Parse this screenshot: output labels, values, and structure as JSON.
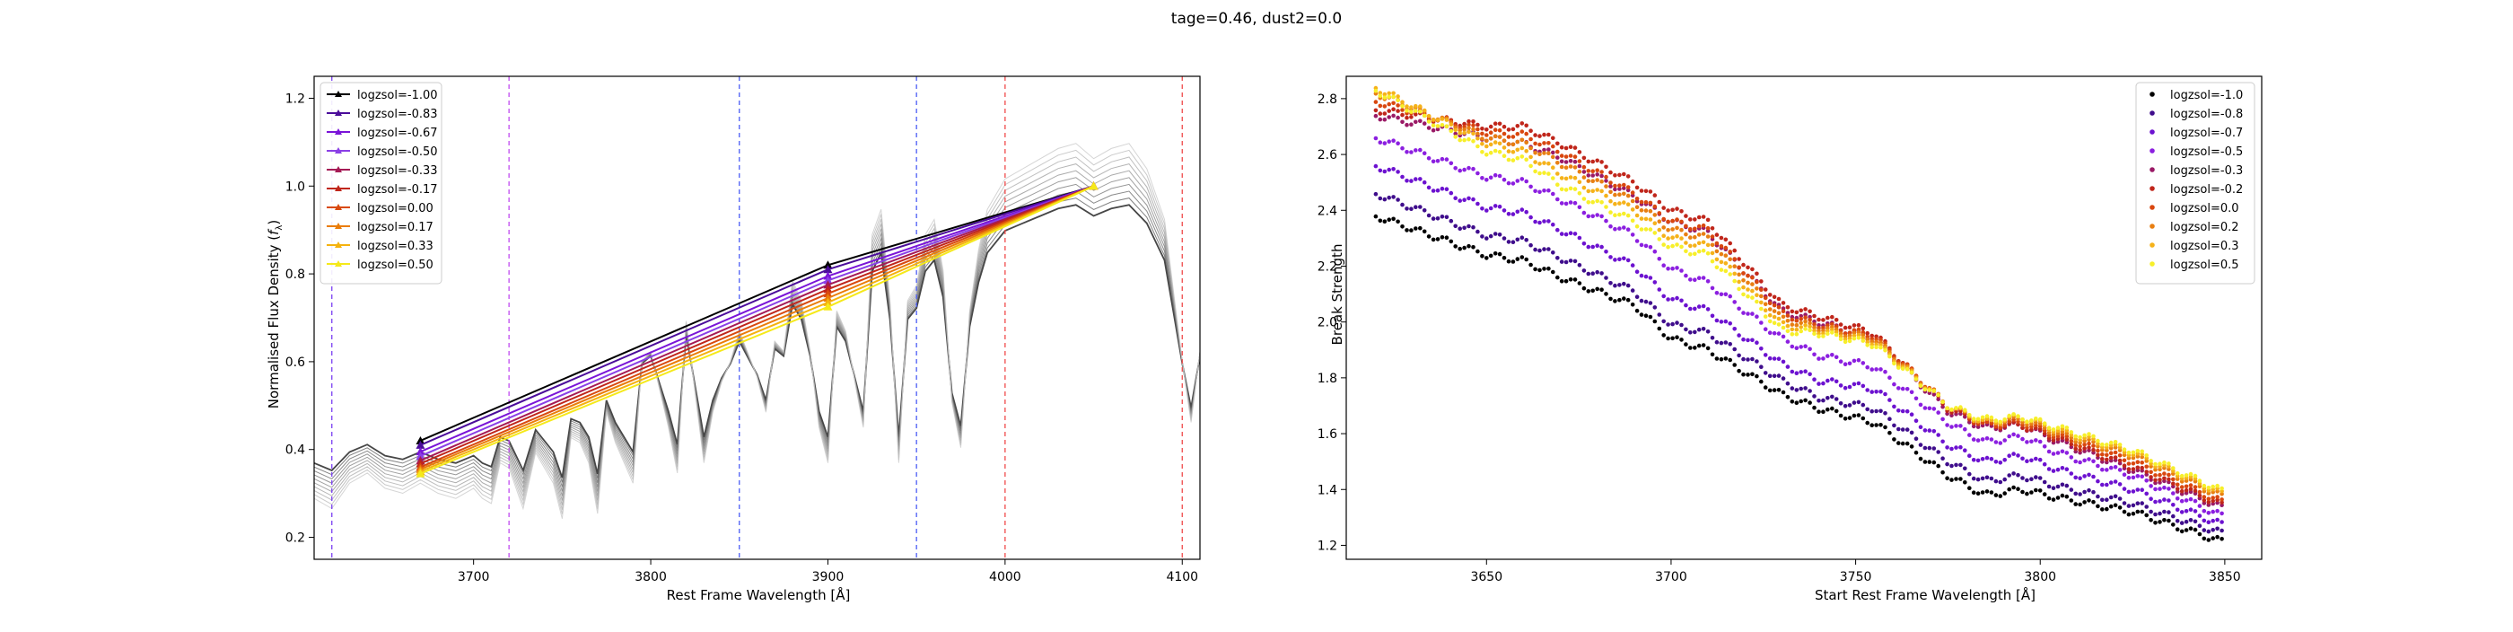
{
  "figure": {
    "suptitle": "tage=0.46, dust2=0.0"
  },
  "chart_data": [
    {
      "type": "line",
      "xlabel": "Rest Frame Wavelength [Å]",
      "ylabel": "Normalised Flux Density (f_λ)",
      "xlim": [
        3610,
        4110
      ],
      "ylim": [
        0.15,
        1.25
      ],
      "xticks": [
        3700,
        3800,
        3900,
        4000,
        4100
      ],
      "yticks": [
        0.2,
        0.4,
        0.6,
        0.8,
        1.0,
        1.2
      ],
      "legend_position": "top-left",
      "vlines": [
        {
          "x": 3620,
          "color": "#7a3ff2"
        },
        {
          "x": 3720,
          "color": "#c04bf0"
        },
        {
          "x": 3850,
          "color": "#4a5cf5"
        },
        {
          "x": 3950,
          "color": "#4a5cf5"
        },
        {
          "x": 4000,
          "color": "#f04a4a"
        },
        {
          "x": 4100,
          "color": "#f04a4a"
        }
      ],
      "spectra_base": {
        "x": [
          3610,
          3620,
          3630,
          3640,
          3650,
          3660,
          3670,
          3680,
          3690,
          3700,
          3705,
          3710,
          3715,
          3720,
          3728,
          3735,
          3745,
          3750,
          3755,
          3760,
          3765,
          3770,
          3775,
          3780,
          3790,
          3795,
          3800,
          3810,
          3815,
          3820,
          3830,
          3835,
          3840,
          3845,
          3850,
          3860,
          3865,
          3870,
          3875,
          3880,
          3885,
          3890,
          3895,
          3900,
          3905,
          3910,
          3920,
          3925,
          3930,
          3935,
          3940,
          3945,
          3950,
          3955,
          3960,
          3965,
          3970,
          3975,
          3980,
          3985,
          3990,
          4000,
          4010,
          4020,
          4030,
          4040,
          4050,
          4060,
          4070,
          4080,
          4090,
          4100,
          4105,
          4110
        ],
        "y": [
          0.33,
          0.31,
          0.36,
          0.38,
          0.35,
          0.34,
          0.36,
          0.34,
          0.33,
          0.35,
          0.33,
          0.32,
          0.4,
          0.39,
          0.31,
          0.42,
          0.36,
          0.29,
          0.45,
          0.44,
          0.4,
          0.3,
          0.5,
          0.44,
          0.36,
          0.6,
          0.62,
          0.47,
          0.38,
          0.68,
          0.4,
          0.5,
          0.56,
          0.6,
          0.66,
          0.57,
          0.5,
          0.64,
          0.62,
          0.76,
          0.72,
          0.62,
          0.47,
          0.4,
          0.7,
          0.66,
          0.47,
          0.85,
          0.9,
          0.72,
          0.4,
          0.72,
          0.75,
          0.85,
          0.88,
          0.78,
          0.52,
          0.43,
          0.7,
          0.82,
          0.9,
          0.96,
          0.98,
          1.0,
          1.02,
          1.03,
          1.0,
          1.02,
          1.03,
          0.98,
          0.88,
          0.6,
          0.48,
          0.62
        ]
      },
      "series": [
        {
          "name": "logzsol=-1.00",
          "color": "#000000",
          "points": [
            [
              3670,
              0.42
            ],
            [
              3900,
              0.82
            ],
            [
              4050,
              1.0
            ]
          ]
        },
        {
          "name": "logzsol=-0.83",
          "color": "#4b0d9a",
          "points": [
            [
              3670,
              0.41
            ],
            [
              3900,
              0.81
            ],
            [
              4050,
              1.0
            ]
          ]
        },
        {
          "name": "logzsol=-0.67",
          "color": "#7a14d8",
          "points": [
            [
              3670,
              0.395
            ],
            [
              3900,
              0.795
            ],
            [
              4050,
              1.0
            ]
          ]
        },
        {
          "name": "logzsol=-0.50",
          "color": "#8a3fe6",
          "points": [
            [
              3670,
              0.385
            ],
            [
              3900,
              0.785
            ],
            [
              4050,
              1.0
            ]
          ]
        },
        {
          "name": "logzsol=-0.33",
          "color": "#a51a55",
          "points": [
            [
              3670,
              0.375
            ],
            [
              3900,
              0.775
            ],
            [
              4050,
              1.0
            ]
          ]
        },
        {
          "name": "logzsol=-0.17",
          "color": "#c0261b",
          "points": [
            [
              3670,
              0.368
            ],
            [
              3900,
              0.765
            ],
            [
              4050,
              1.0
            ]
          ]
        },
        {
          "name": "logzsol=0.00",
          "color": "#d94a0f",
          "points": [
            [
              3670,
              0.36
            ],
            [
              3900,
              0.755
            ],
            [
              4050,
              1.0
            ]
          ]
        },
        {
          "name": "logzsol=0.17",
          "color": "#ea7d0a",
          "points": [
            [
              3670,
              0.355
            ],
            [
              3900,
              0.745
            ],
            [
              4050,
              1.0
            ]
          ]
        },
        {
          "name": "logzsol=0.33",
          "color": "#f5b20f",
          "points": [
            [
              3670,
              0.35
            ],
            [
              3900,
              0.735
            ],
            [
              4050,
              1.0
            ]
          ]
        },
        {
          "name": "logzsol=0.50",
          "color": "#f5e91a",
          "points": [
            [
              3670,
              0.345
            ],
            [
              3900,
              0.725
            ],
            [
              4050,
              1.0
            ]
          ]
        }
      ]
    },
    {
      "type": "scatter",
      "xlabel": "Start Rest Frame Wavelength [Å]",
      "ylabel": "Break Strength",
      "xlim": [
        3612,
        3860
      ],
      "ylim": [
        1.15,
        2.88
      ],
      "xticks": [
        3650,
        3700,
        3750,
        3800,
        3850
      ],
      "yticks": [
        1.2,
        1.4,
        1.6,
        1.8,
        2.0,
        2.2,
        2.4,
        2.6,
        2.8
      ],
      "legend_position": "top-right",
      "x_range": [
        3620,
        3850
      ],
      "series": [
        {
          "name": "logzsol=-1.0",
          "color": "#000000",
          "anchors": [
            [
              3620,
              2.38
            ],
            [
              3650,
              2.24
            ],
            [
              3660,
              2.22
            ],
            [
              3670,
              2.16
            ],
            [
              3690,
              2.06
            ],
            [
              3700,
              1.94
            ],
            [
              3710,
              1.9
            ],
            [
              3730,
              1.74
            ],
            [
              3740,
              1.69
            ],
            [
              3755,
              1.64
            ],
            [
              3775,
              1.45
            ],
            [
              3785,
              1.38
            ],
            [
              3795,
              1.4
            ],
            [
              3805,
              1.37
            ],
            [
              3825,
              1.32
            ],
            [
              3850,
              1.21
            ]
          ]
        },
        {
          "name": "logzsol=-0.8",
          "color": "#3f0d8c",
          "anchors": [
            [
              3620,
              2.46
            ],
            [
              3650,
              2.31
            ],
            [
              3660,
              2.29
            ],
            [
              3670,
              2.23
            ],
            [
              3690,
              2.11
            ],
            [
              3700,
              1.99
            ],
            [
              3710,
              1.96
            ],
            [
              3730,
              1.79
            ],
            [
              3740,
              1.73
            ],
            [
              3755,
              1.69
            ],
            [
              3775,
              1.5
            ],
            [
              3785,
              1.43
            ],
            [
              3795,
              1.45
            ],
            [
              3805,
              1.41
            ],
            [
              3825,
              1.35
            ],
            [
              3850,
              1.24
            ]
          ]
        },
        {
          "name": "logzsol=-0.7",
          "color": "#6c12d0",
          "anchors": [
            [
              3620,
              2.56
            ],
            [
              3650,
              2.41
            ],
            [
              3660,
              2.39
            ],
            [
              3670,
              2.33
            ],
            [
              3690,
              2.2
            ],
            [
              3700,
              2.08
            ],
            [
              3710,
              2.04
            ],
            [
              3730,
              1.85
            ],
            [
              3740,
              1.79
            ],
            [
              3755,
              1.76
            ],
            [
              3775,
              1.56
            ],
            [
              3785,
              1.5
            ],
            [
              3795,
              1.52
            ],
            [
              3805,
              1.47
            ],
            [
              3825,
              1.4
            ],
            [
              3850,
              1.27
            ]
          ]
        },
        {
          "name": "logzsol=-0.5",
          "color": "#8b1fe0",
          "anchors": [
            [
              3620,
              2.66
            ],
            [
              3650,
              2.52
            ],
            [
              3660,
              2.5
            ],
            [
              3670,
              2.44
            ],
            [
              3690,
              2.31
            ],
            [
              3700,
              2.19
            ],
            [
              3710,
              2.14
            ],
            [
              3730,
              1.94
            ],
            [
              3740,
              1.88
            ],
            [
              3755,
              1.84
            ],
            [
              3775,
              1.64
            ],
            [
              3785,
              1.57
            ],
            [
              3795,
              1.59
            ],
            [
              3805,
              1.53
            ],
            [
              3825,
              1.45
            ],
            [
              3850,
              1.3
            ]
          ]
        },
        {
          "name": "logzsol=-0.3",
          "color": "#9a1a66",
          "anchors": [
            [
              3620,
              2.74
            ],
            [
              3650,
              2.66
            ],
            [
              3660,
              2.64
            ],
            [
              3670,
              2.59
            ],
            [
              3690,
              2.45
            ],
            [
              3700,
              2.36
            ],
            [
              3710,
              2.32
            ],
            [
              3730,
              2.04
            ],
            [
              3740,
              2.0
            ],
            [
              3755,
              1.94
            ],
            [
              3775,
              1.68
            ],
            [
              3785,
              1.62
            ],
            [
              3795,
              1.63
            ],
            [
              3805,
              1.57
            ],
            [
              3825,
              1.47
            ],
            [
              3850,
              1.33
            ]
          ]
        },
        {
          "name": "logzsol=-0.2",
          "color": "#c0261b",
          "anchors": [
            [
              3620,
              2.76
            ],
            [
              3650,
              2.7
            ],
            [
              3660,
              2.7
            ],
            [
              3670,
              2.64
            ],
            [
              3690,
              2.5
            ],
            [
              3700,
              2.4
            ],
            [
              3710,
              2.36
            ],
            [
              3730,
              2.06
            ],
            [
              3740,
              2.02
            ],
            [
              3755,
              1.96
            ],
            [
              3775,
              1.69
            ],
            [
              3785,
              1.63
            ],
            [
              3795,
              1.63
            ],
            [
              3805,
              1.58
            ],
            [
              3825,
              1.48
            ],
            [
              3850,
              1.34
            ]
          ]
        },
        {
          "name": "logzsol=0.0",
          "color": "#d9470f",
          "anchors": [
            [
              3620,
              2.79
            ],
            [
              3650,
              2.68
            ],
            [
              3660,
              2.67
            ],
            [
              3670,
              2.61
            ],
            [
              3690,
              2.46
            ],
            [
              3700,
              2.36
            ],
            [
              3710,
              2.33
            ],
            [
              3730,
              2.03
            ],
            [
              3740,
              1.99
            ],
            [
              3755,
              1.95
            ],
            [
              3775,
              1.7
            ],
            [
              3785,
              1.63
            ],
            [
              3795,
              1.64
            ],
            [
              3805,
              1.59
            ],
            [
              3825,
              1.5
            ],
            [
              3850,
              1.35
            ]
          ]
        },
        {
          "name": "logzsol=0.2",
          "color": "#e87f12",
          "anchors": [
            [
              3620,
              2.82
            ],
            [
              3650,
              2.66
            ],
            [
              3660,
              2.64
            ],
            [
              3670,
              2.57
            ],
            [
              3690,
              2.43
            ],
            [
              3700,
              2.33
            ],
            [
              3710,
              2.3
            ],
            [
              3730,
              2.01
            ],
            [
              3740,
              1.98
            ],
            [
              3755,
              1.94
            ],
            [
              3775,
              1.7
            ],
            [
              3785,
              1.64
            ],
            [
              3795,
              1.65
            ],
            [
              3805,
              1.6
            ],
            [
              3825,
              1.52
            ],
            [
              3850,
              1.37
            ]
          ]
        },
        {
          "name": "logzsol=0.3",
          "color": "#f5b21a",
          "anchors": [
            [
              3620,
              2.84
            ],
            [
              3650,
              2.64
            ],
            [
              3660,
              2.61
            ],
            [
              3670,
              2.53
            ],
            [
              3690,
              2.4
            ],
            [
              3700,
              2.3
            ],
            [
              3710,
              2.27
            ],
            [
              3730,
              1.99
            ],
            [
              3740,
              1.97
            ],
            [
              3755,
              1.93
            ],
            [
              3775,
              1.7
            ],
            [
              3785,
              1.64
            ],
            [
              3795,
              1.66
            ],
            [
              3805,
              1.61
            ],
            [
              3825,
              1.53
            ],
            [
              3850,
              1.38
            ]
          ]
        },
        {
          "name": "logzsol=0.5",
          "color": "#f7ef2a",
          "anchors": [
            [
              3620,
              2.83
            ],
            [
              3650,
              2.61
            ],
            [
              3660,
              2.58
            ],
            [
              3670,
              2.49
            ],
            [
              3690,
              2.36
            ],
            [
              3700,
              2.27
            ],
            [
              3710,
              2.24
            ],
            [
              3730,
              1.97
            ],
            [
              3740,
              1.96
            ],
            [
              3755,
              1.92
            ],
            [
              3775,
              1.7
            ],
            [
              3785,
              1.65
            ],
            [
              3795,
              1.66
            ],
            [
              3805,
              1.62
            ],
            [
              3825,
              1.54
            ],
            [
              3850,
              1.39
            ]
          ]
        }
      ]
    }
  ]
}
